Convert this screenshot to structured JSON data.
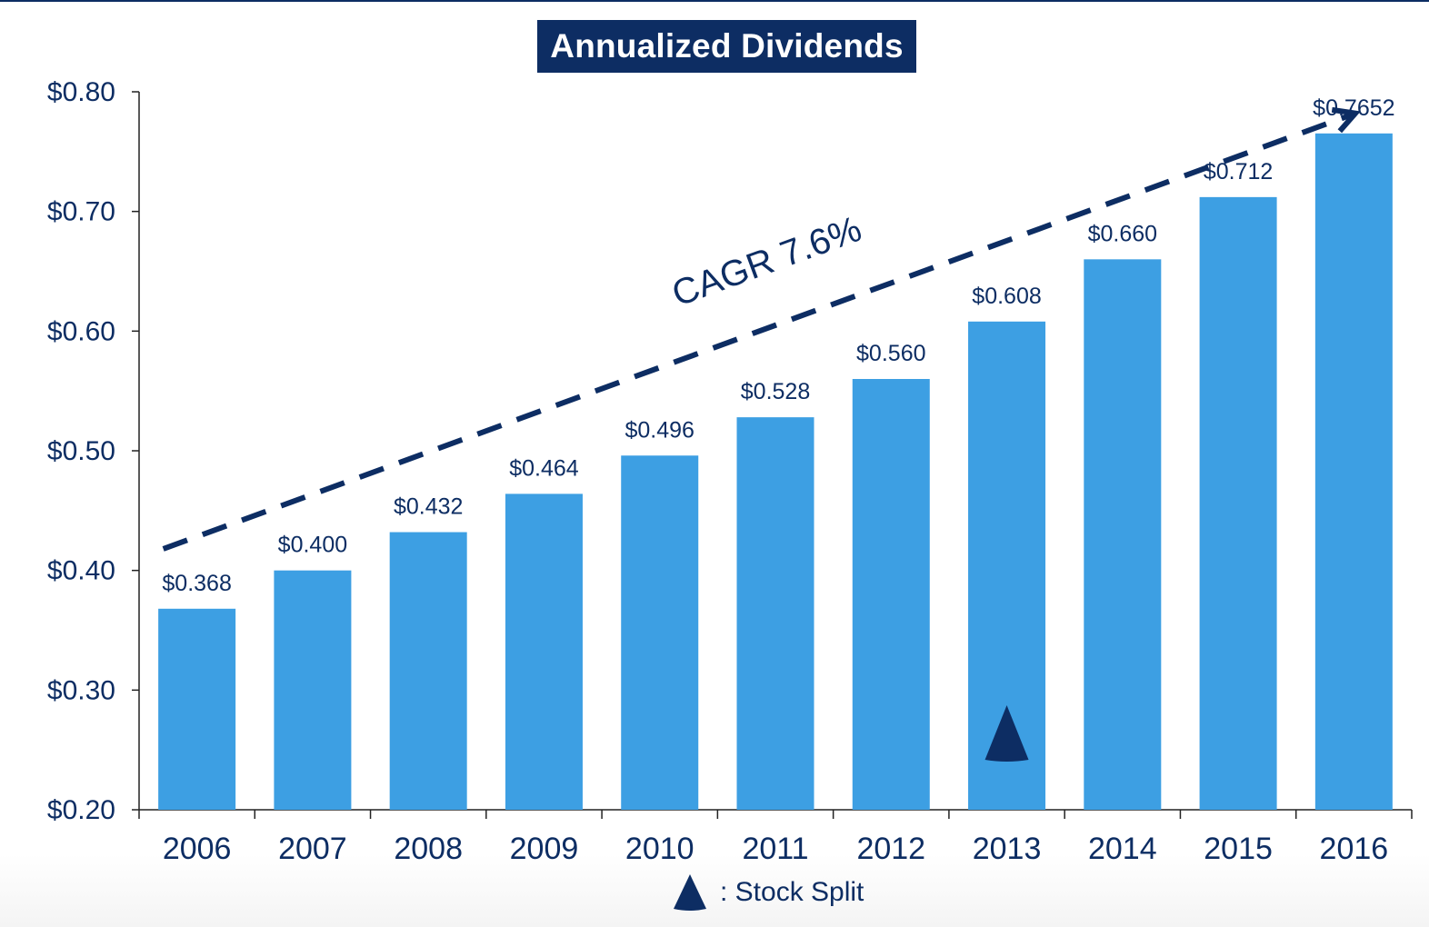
{
  "chart_data": {
    "type": "bar",
    "title": "Annualized Dividends",
    "categories": [
      "2006",
      "2007",
      "2008",
      "2009",
      "2010",
      "2011",
      "2012",
      "2013",
      "2014",
      "2015",
      "2016"
    ],
    "values": [
      0.368,
      0.4,
      0.432,
      0.464,
      0.496,
      0.528,
      0.56,
      0.608,
      0.66,
      0.712,
      0.7652
    ],
    "data_labels": [
      "$0.368",
      "$0.400",
      "$0.432",
      "$0.464",
      "$0.496",
      "$0.528",
      "$0.560",
      "$0.608",
      "$0.660",
      "$0.712",
      "$0.7652"
    ],
    "ylim": [
      0.2,
      0.8
    ],
    "yticks": [
      0.2,
      0.3,
      0.4,
      0.5,
      0.6,
      0.7,
      0.8
    ],
    "ytick_labels": [
      "$0.20",
      "$0.30",
      "$0.40",
      "$0.50",
      "$0.60",
      "$0.70",
      "$0.80"
    ],
    "xlabel": "",
    "ylabel": "",
    "grid": false,
    "bar_color": "#3d9fe3",
    "text_color": "#0d2d63",
    "trend_annotation": {
      "label": "CAGR 7.6%",
      "style": "dashed-arrow"
    },
    "markers": [
      {
        "category": "2013",
        "icon": "triangle-marker-icon",
        "meaning": "Stock Split"
      }
    ],
    "legend": {
      "placement": "bottom-center",
      "icon": "triangle-marker-icon",
      "label": ": Stock Split"
    }
  }
}
